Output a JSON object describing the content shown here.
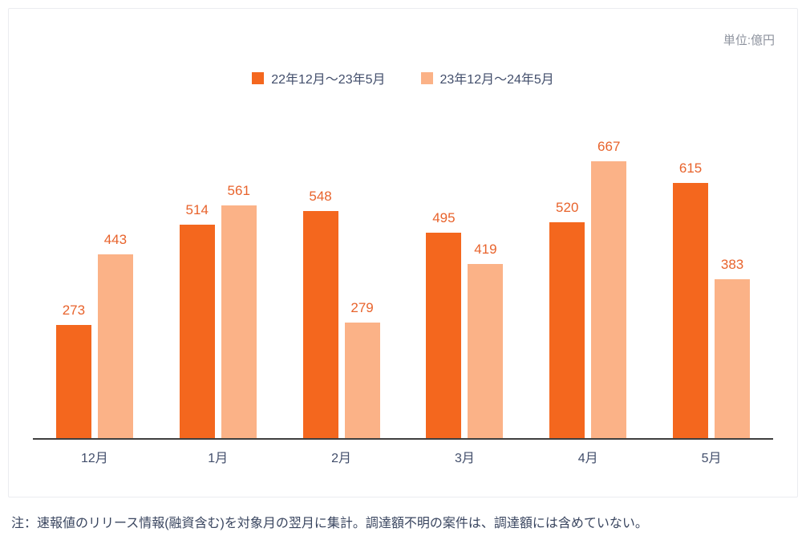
{
  "unit_label": "単位:億円",
  "legend": [
    {
      "label": "22年12月〜23年5月",
      "color": "#f4671e"
    },
    {
      "label": "23年12月〜24年5月",
      "color": "#fbb287"
    }
  ],
  "chart_data": {
    "type": "bar",
    "title": "",
    "xlabel": "",
    "ylabel": "億円",
    "unit": "億円",
    "categories": [
      "12月",
      "1月",
      "2月",
      "3月",
      "4月",
      "5月"
    ],
    "series": [
      {
        "name": "22年12月〜23年5月",
        "color": "#f4671e",
        "values": [
          273,
          514,
          548,
          495,
          520,
          615
        ]
      },
      {
        "name": "23年12月〜24年5月",
        "color": "#fbb287",
        "values": [
          443,
          561,
          279,
          419,
          667,
          383
        ]
      }
    ],
    "ylim": [
      0,
      700
    ],
    "grid": false,
    "legend_position": "top-center",
    "value_label_color": "#e8632c"
  },
  "note": "注：速報値のリリース情報(融資含む)を対象月の翌月に集計。調達額不明の案件は、調達額には含めていない。"
}
